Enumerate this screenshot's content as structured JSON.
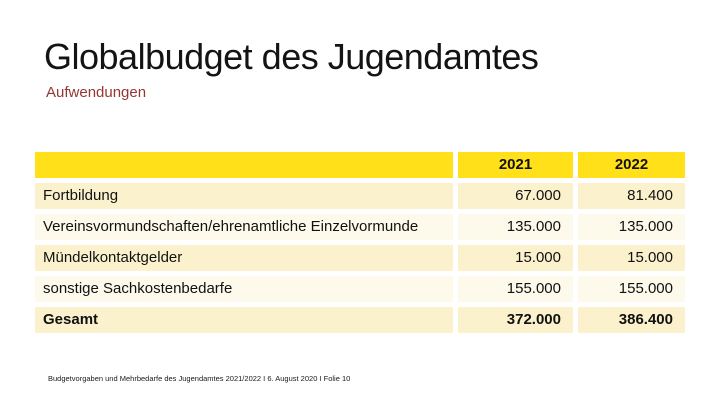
{
  "slide": {
    "title": "Globalbudget des Jugendamtes",
    "subtitle": "Aufwendungen",
    "footer": "Budgetvorgaben und Mehrbedarfe des Jugendamtes 2021/2022 I 6. August 2020 I Folie 10"
  },
  "colors": {
    "header_bg": "#ffe019",
    "row_odd_bg": "#fbf2cd",
    "row_even_bg": "#fdfaec",
    "subtitle_color": "#943634",
    "text_color": "#111111",
    "background": "#ffffff"
  },
  "chart_data": {
    "type": "table",
    "title": "Globalbudget des Jugendamtes - Aufwendungen",
    "columns": [
      "",
      "2021",
      "2022"
    ],
    "rows": [
      {
        "label": "Fortbildung",
        "values": [
          "67.000",
          "81.400"
        ]
      },
      {
        "label": "Vereinsvormundschaften/ehrenamtliche Einzelvormunde",
        "values": [
          "135.000",
          "135.000"
        ]
      },
      {
        "label": "Mündelkontaktgelder",
        "values": [
          "15.000",
          "15.000"
        ]
      },
      {
        "label": "sonstige Sachkostenbedarfe",
        "values": [
          "155.000",
          "155.000"
        ]
      },
      {
        "label": "Gesamt",
        "values": [
          "372.000",
          "386.400"
        ],
        "bold": true
      }
    ]
  }
}
